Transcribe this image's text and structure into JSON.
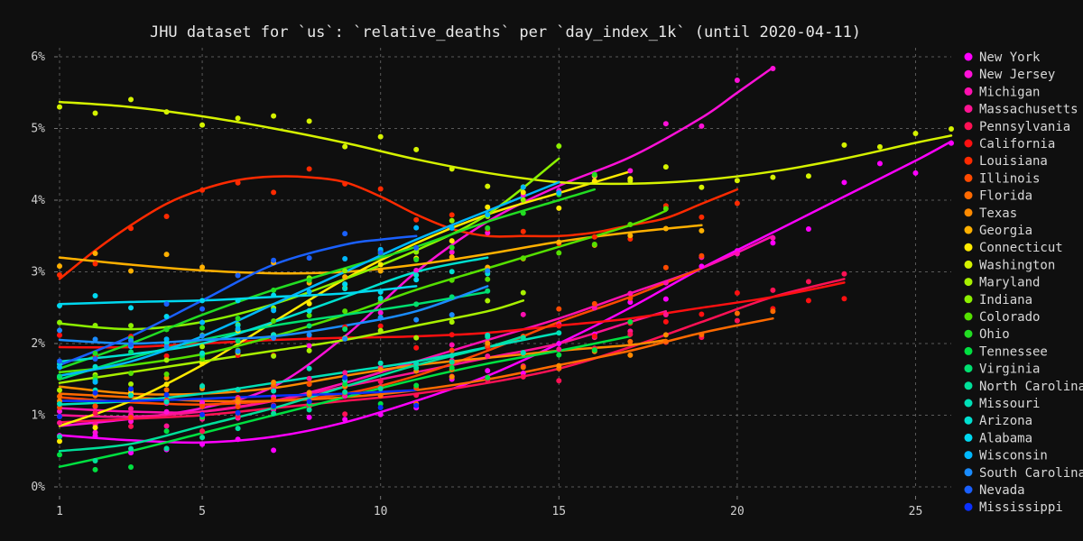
{
  "chart_data": {
    "type": "line",
    "title": "JHU dataset for `us`: `relative_deaths` per `day_index_1k` (until 2020-04-11)",
    "xlabel": "",
    "ylabel": "",
    "xlim": [
      1,
      26
    ],
    "ylim": [
      0,
      6
    ],
    "x_ticks": [
      1,
      5,
      10,
      15,
      20,
      25
    ],
    "y_ticks": [
      0,
      1,
      2,
      3,
      4,
      5,
      6
    ],
    "y_tick_labels": [
      "0%",
      "1%",
      "2%",
      "3%",
      "4%",
      "5%",
      "6%"
    ],
    "grid": true,
    "legend_position": "right",
    "series": [
      {
        "name": "New York",
        "color": "#ff00ff",
        "x": [
          1,
          3,
          5,
          7,
          9,
          11,
          13,
          15,
          17,
          19,
          21,
          23,
          25,
          26
        ],
        "y": [
          0.72,
          0.65,
          0.62,
          0.7,
          0.9,
          1.2,
          1.55,
          2.0,
          2.5,
          3.05,
          3.55,
          4.05,
          4.55,
          4.82
        ]
      },
      {
        "name": "New Jersey",
        "color": "#ff11d8",
        "x": [
          1,
          3,
          5,
          7,
          9,
          11,
          13,
          15,
          17,
          19,
          20,
          21
        ],
        "y": [
          0.85,
          0.95,
          1.1,
          1.4,
          2.1,
          3.0,
          3.7,
          4.2,
          4.6,
          5.15,
          5.5,
          5.85
        ]
      },
      {
        "name": "Michigan",
        "color": "#ff10b0",
        "x": [
          1,
          3,
          5,
          7,
          9,
          11,
          13,
          15,
          17,
          19,
          21
        ],
        "y": [
          1.1,
          1.05,
          1.05,
          1.2,
          1.45,
          1.75,
          2.05,
          2.35,
          2.7,
          3.05,
          3.5
        ]
      },
      {
        "name": "Massachusetts",
        "color": "#ff1493",
        "x": [
          1,
          3,
          5,
          7,
          9,
          11,
          13,
          15,
          17,
          18
        ],
        "y": [
          1.0,
          0.98,
          1.05,
          1.2,
          1.4,
          1.6,
          1.8,
          2.0,
          2.3,
          2.45
        ]
      },
      {
        "name": "Pennsylvania",
        "color": "#ff1155",
        "x": [
          1,
          3,
          5,
          7,
          9,
          11,
          13,
          15,
          17,
          19,
          21,
          23
        ],
        "y": [
          0.9,
          0.95,
          1.0,
          1.1,
          1.2,
          1.3,
          1.45,
          1.65,
          1.95,
          2.3,
          2.65,
          2.9
        ]
      },
      {
        "name": "California",
        "color": "#ff1010",
        "x": [
          1,
          3,
          5,
          7,
          9,
          11,
          13,
          15,
          17,
          19,
          21,
          23
        ],
        "y": [
          1.95,
          1.95,
          2.0,
          2.05,
          2.08,
          2.1,
          2.15,
          2.25,
          2.35,
          2.5,
          2.65,
          2.85
        ]
      },
      {
        "name": "Louisiana",
        "color": "#ff2a00",
        "x": [
          1,
          2,
          3,
          4,
          5,
          6,
          7,
          8,
          9,
          10,
          11,
          12,
          13,
          14,
          15,
          16,
          17,
          18,
          19,
          20
        ],
        "y": [
          2.9,
          3.3,
          3.65,
          3.95,
          4.15,
          4.28,
          4.33,
          4.32,
          4.25,
          4.05,
          3.8,
          3.6,
          3.5,
          3.5,
          3.5,
          3.55,
          3.65,
          3.75,
          3.95,
          4.15
        ]
      },
      {
        "name": "Illinois",
        "color": "#ff4a00",
        "x": [
          1,
          3,
          5,
          7,
          9,
          11,
          13,
          15,
          17,
          19
        ],
        "y": [
          1.25,
          1.18,
          1.15,
          1.2,
          1.3,
          1.55,
          1.9,
          2.3,
          2.65,
          3.05
        ]
      },
      {
        "name": "Florida",
        "color": "#ff6a00",
        "x": [
          1,
          3,
          5,
          7,
          9,
          11,
          13,
          15,
          17,
          19,
          21
        ],
        "y": [
          1.3,
          1.25,
          1.2,
          1.2,
          1.25,
          1.35,
          1.5,
          1.7,
          1.9,
          2.15,
          2.35
        ]
      },
      {
        "name": "Texas",
        "color": "#ff8a00",
        "x": [
          1,
          3,
          5,
          7,
          9,
          11,
          13,
          15,
          17,
          18
        ],
        "y": [
          1.4,
          1.3,
          1.3,
          1.38,
          1.55,
          1.7,
          1.8,
          1.9,
          1.98,
          2.05
        ]
      },
      {
        "name": "Georgia",
        "color": "#ffb000",
        "x": [
          1,
          3,
          5,
          7,
          9,
          11,
          13,
          15,
          17,
          19
        ],
        "y": [
          3.2,
          3.1,
          3.02,
          2.98,
          3.0,
          3.1,
          3.25,
          3.42,
          3.55,
          3.65
        ]
      },
      {
        "name": "Connecticut",
        "color": "#ffea00",
        "x": [
          1,
          3,
          5,
          7,
          9,
          11,
          13,
          15,
          17
        ],
        "y": [
          0.85,
          1.2,
          1.7,
          2.3,
          2.9,
          3.4,
          3.8,
          4.1,
          4.4
        ]
      },
      {
        "name": "Washington",
        "color": "#d5f200",
        "x": [
          1,
          3,
          5,
          7,
          9,
          11,
          13,
          15,
          17,
          19,
          21,
          23,
          25,
          26
        ],
        "y": [
          5.37,
          5.3,
          5.17,
          5.0,
          4.8,
          4.57,
          4.38,
          4.25,
          4.23,
          4.28,
          4.4,
          4.58,
          4.8,
          4.9
        ]
      },
      {
        "name": "Maryland",
        "color": "#a8f000",
        "x": [
          1,
          3,
          5,
          7,
          9,
          11,
          13,
          14
        ],
        "y": [
          1.45,
          1.6,
          1.75,
          1.9,
          2.05,
          2.25,
          2.45,
          2.6
        ]
      },
      {
        "name": "Indiana",
        "color": "#8cf000",
        "x": [
          1,
          3,
          5,
          7,
          9,
          11,
          13,
          15
        ],
        "y": [
          2.28,
          2.2,
          2.3,
          2.55,
          2.9,
          3.3,
          3.8,
          4.58
        ]
      },
      {
        "name": "Colorado",
        "color": "#55e000",
        "x": [
          1,
          3,
          5,
          7,
          9,
          11,
          13,
          15,
          17,
          18
        ],
        "y": [
          1.6,
          1.7,
          1.85,
          2.1,
          2.4,
          2.75,
          3.05,
          3.35,
          3.65,
          3.85
        ]
      },
      {
        "name": "Ohio",
        "color": "#22dd22",
        "x": [
          1,
          3,
          5,
          7,
          9,
          11,
          13,
          15,
          16
        ],
        "y": [
          1.65,
          2.0,
          2.4,
          2.75,
          3.05,
          3.35,
          3.7,
          4.0,
          4.15
        ]
      },
      {
        "name": "Tennessee",
        "color": "#00e040",
        "x": [
          1,
          3,
          5,
          7,
          9,
          11,
          13,
          15,
          17
        ],
        "y": [
          0.28,
          0.5,
          0.75,
          1.0,
          1.25,
          1.5,
          1.72,
          1.9,
          2.1
        ]
      },
      {
        "name": "Virginia",
        "color": "#00e070",
        "x": [
          1,
          3,
          5,
          7,
          9,
          11,
          13
        ],
        "y": [
          1.5,
          1.8,
          2.05,
          2.25,
          2.4,
          2.55,
          2.72
        ]
      },
      {
        "name": "North Carolina",
        "color": "#00e09a",
        "x": [
          1,
          3,
          5,
          7,
          9,
          11,
          13,
          14
        ],
        "y": [
          0.5,
          0.6,
          0.85,
          1.1,
          1.4,
          1.7,
          1.95,
          2.1
        ]
      },
      {
        "name": "Missouri",
        "color": "#00e0b8",
        "x": [
          1,
          3,
          5,
          7,
          9,
          11,
          13,
          15
        ],
        "y": [
          1.15,
          1.2,
          1.3,
          1.45,
          1.6,
          1.75,
          1.95,
          2.15
        ]
      },
      {
        "name": "Arizona",
        "color": "#00e0d0",
        "x": [
          1,
          3,
          5,
          7,
          9,
          11,
          13
        ],
        "y": [
          1.75,
          1.85,
          2.0,
          2.3,
          2.65,
          3.0,
          3.2
        ]
      },
      {
        "name": "Alabama",
        "color": "#00d8f0",
        "x": [
          1,
          3,
          5,
          7,
          9,
          11
        ],
        "y": [
          2.55,
          2.58,
          2.6,
          2.65,
          2.7,
          2.8
        ]
      },
      {
        "name": "Wisconsin",
        "color": "#00b8ff",
        "x": [
          1,
          3,
          5,
          7,
          9,
          11,
          13,
          15
        ],
        "y": [
          1.55,
          1.75,
          2.1,
          2.55,
          3.0,
          3.45,
          3.85,
          4.25
        ]
      },
      {
        "name": "South Carolina",
        "color": "#1a8cff",
        "x": [
          1,
          3,
          5,
          7,
          9,
          11,
          13
        ],
        "y": [
          2.05,
          2.0,
          2.05,
          2.1,
          2.25,
          2.45,
          2.8
        ]
      },
      {
        "name": "Nevada",
        "color": "#1a60ff",
        "x": [
          1,
          3,
          5,
          7,
          9,
          10,
          11
        ],
        "y": [
          1.7,
          2.1,
          2.6,
          3.1,
          3.38,
          3.45,
          3.5
        ]
      },
      {
        "name": "Mississippi",
        "color": "#0a30ff",
        "x": [
          1,
          3,
          5,
          7,
          9,
          11
        ],
        "y": [
          1.2,
          1.2,
          1.23,
          1.27,
          1.3,
          1.35
        ]
      }
    ]
  }
}
